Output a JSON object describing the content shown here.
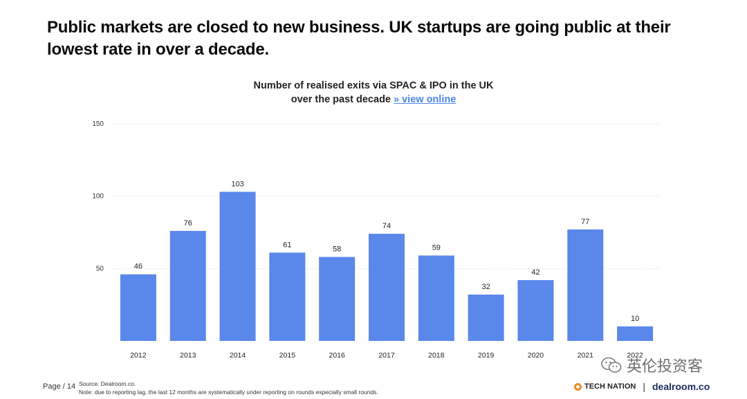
{
  "headline": "Public markets are closed to new business. UK startups are going public at their lowest rate in over a decade.",
  "chart_title_line1": "Number of realised exits via SPAC & IPO in the UK",
  "chart_title_line2": "over the past decade ",
  "chart_link": "» view online",
  "chart_data": {
    "type": "bar",
    "title": "Number of realised exits via SPAC & IPO in the UK over the past decade",
    "categories": [
      "2012",
      "2013",
      "2014",
      "2015",
      "2016",
      "2017",
      "2018",
      "2019",
      "2020",
      "2021",
      "2022"
    ],
    "values": [
      46,
      76,
      103,
      61,
      58,
      74,
      59,
      32,
      42,
      77,
      10
    ],
    "yticks": [
      50,
      100,
      150
    ],
    "ylim": [
      0,
      150
    ],
    "xlabel": "",
    "ylabel": "",
    "bar_color": "#5a87ea",
    "grid": true
  },
  "footer": {
    "page": "Page / 14",
    "source": "Source: Dealroom.co.",
    "note": "Note: due to reporting lag, the last 12 months are systematically under reporting on rounds especially small rounds."
  },
  "logos": {
    "technation": "TECH NATION",
    "separator": "|",
    "dealroom": "dealroom.co"
  },
  "watermark": "英伦投资客"
}
